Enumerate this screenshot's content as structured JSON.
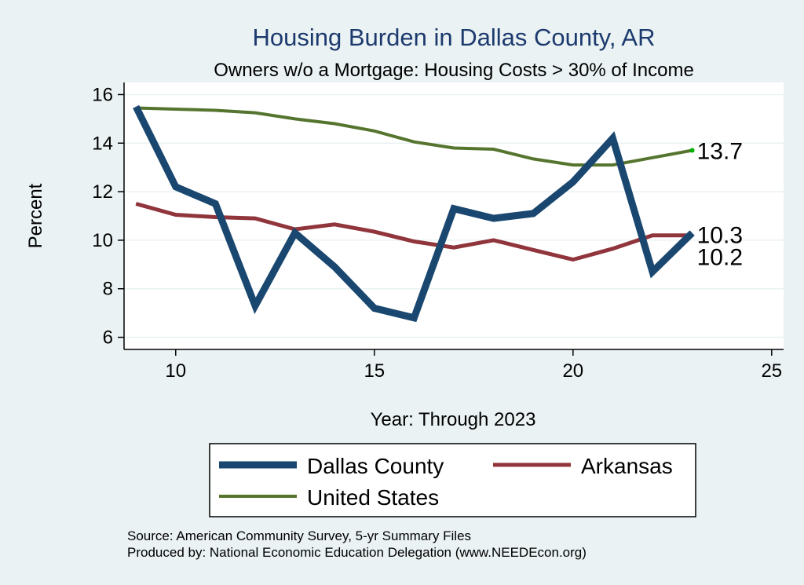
{
  "chart_data": {
    "type": "line",
    "title": "Housing Burden in Dallas County, AR",
    "subtitle": "Owners w/o a Mortgage: Housing Costs > 30% of Income",
    "xlabel": "Year: Through 2023",
    "ylabel": "Percent",
    "xlim": [
      8.7,
      25.3
    ],
    "ylim": [
      5.5,
      16.5
    ],
    "xticks": [
      10,
      15,
      20,
      25
    ],
    "yticks": [
      6,
      8,
      10,
      12,
      14,
      16
    ],
    "grid": true,
    "legend_position": "bottom",
    "x": [
      9,
      10,
      11,
      12,
      13,
      14,
      15,
      16,
      17,
      18,
      19,
      20,
      21,
      22,
      23
    ],
    "series": [
      {
        "name": "Dallas County",
        "color": "#1a476f",
        "width": 9,
        "values": [
          15.5,
          12.2,
          11.5,
          7.3,
          10.3,
          8.9,
          7.2,
          6.8,
          11.3,
          10.9,
          11.1,
          12.4,
          14.2,
          8.7,
          10.3
        ]
      },
      {
        "name": "Arkansas",
        "color": "#90353b",
        "width": 5,
        "values": [
          11.5,
          11.05,
          10.95,
          10.9,
          10.45,
          10.65,
          10.35,
          9.95,
          9.7,
          10.0,
          9.6,
          9.2,
          9.65,
          10.2,
          10.2
        ]
      },
      {
        "name": "United States",
        "color": "#55752f",
        "width": 4,
        "values": [
          15.45,
          15.4,
          15.35,
          15.25,
          15.0,
          14.8,
          14.5,
          14.05,
          13.8,
          13.75,
          13.35,
          13.1,
          13.1,
          13.4,
          13.7
        ]
      }
    ],
    "end_labels": [
      {
        "series": "United States",
        "text": "13.7",
        "y": 13.7
      },
      {
        "series": "Dallas County",
        "text": "10.3",
        "y": 10.3
      },
      {
        "series": "Arkansas",
        "text": "10.2",
        "y": 10.2
      }
    ],
    "source_lines": [
      "Source: American Community Survey, 5-yr Summary Files",
      "Produced by: National Economic Education Delegation (www.NEEDEcon.org)"
    ]
  }
}
